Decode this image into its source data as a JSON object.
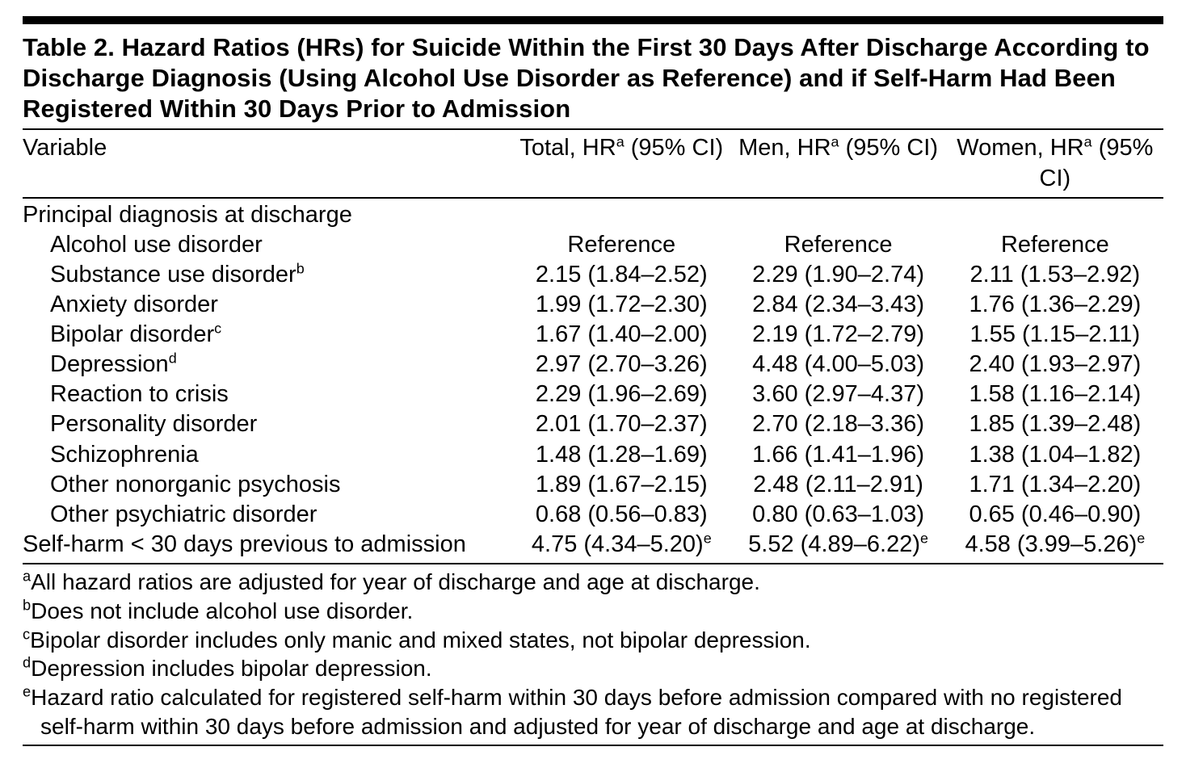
{
  "caption": "Table 2. Hazard Ratios (HRs) for Suicide Within the First 30 Days After Discharge According to Discharge Diagnosis (Using Alcohol Use Disorder as Reference) and if Self-Harm Had Been Registered Within 30 Days Prior to Admission",
  "columns": {
    "variable": "Variable",
    "total_pre": "Total, HR",
    "total_sup": "a",
    "total_post": " (95% CI)",
    "men_pre": "Men, HR",
    "men_sup": "a",
    "men_post": " (95% CI)",
    "women_pre": "Women, HR",
    "women_sup": "a",
    "women_post": " (95% CI)"
  },
  "section_header": "Principal diagnosis at discharge",
  "rows": [
    {
      "label": "Alcohol use disorder",
      "sup": "",
      "total": "Reference",
      "men": "Reference",
      "women": "Reference",
      "tsup": "",
      "msup": "",
      "wsup": ""
    },
    {
      "label": "Substance use disorder",
      "sup": "b",
      "total": "2.15 (1.84–2.52)",
      "men": "2.29 (1.90–2.74)",
      "women": "2.11 (1.53–2.92)",
      "tsup": "",
      "msup": "",
      "wsup": ""
    },
    {
      "label": "Anxiety disorder",
      "sup": "",
      "total": "1.99 (1.72–2.30)",
      "men": "2.84 (2.34–3.43)",
      "women": "1.76 (1.36–2.29)",
      "tsup": "",
      "msup": "",
      "wsup": ""
    },
    {
      "label": "Bipolar disorder",
      "sup": "c",
      "total": "1.67 (1.40–2.00)",
      "men": "2.19 (1.72–2.79)",
      "women": "1.55 (1.15–2.11)",
      "tsup": "",
      "msup": "",
      "wsup": ""
    },
    {
      "label": "Depression",
      "sup": "d",
      "total": "2.97 (2.70–3.26)",
      "men": "4.48 (4.00–5.03)",
      "women": "2.40 (1.93–2.97)",
      "tsup": "",
      "msup": "",
      "wsup": ""
    },
    {
      "label": "Reaction to crisis",
      "sup": "",
      "total": "2.29 (1.96–2.69)",
      "men": "3.60 (2.97–4.37)",
      "women": "1.58 (1.16–2.14)",
      "tsup": "",
      "msup": "",
      "wsup": ""
    },
    {
      "label": "Personality disorder",
      "sup": "",
      "total": "2.01 (1.70–2.37)",
      "men": "2.70 (2.18–3.36)",
      "women": "1.85 (1.39–2.48)",
      "tsup": "",
      "msup": "",
      "wsup": ""
    },
    {
      "label": "Schizophrenia",
      "sup": "",
      "total": "1.48 (1.28–1.69)",
      "men": "1.66 (1.41–1.96)",
      "women": "1.38 (1.04–1.82)",
      "tsup": "",
      "msup": "",
      "wsup": ""
    },
    {
      "label": "Other nonorganic psychosis",
      "sup": "",
      "total": "1.89 (1.67–2.15)",
      "men": "2.48 (2.11–2.91)",
      "women": "1.71 (1.34–2.20)",
      "tsup": "",
      "msup": "",
      "wsup": ""
    },
    {
      "label": "Other psychiatric disorder",
      "sup": "",
      "total": "0.68 (0.56–0.83)",
      "men": "0.80 (0.63–1.03)",
      "women": "0.65 (0.46–0.90)",
      "tsup": "",
      "msup": "",
      "wsup": ""
    }
  ],
  "self_harm_row": {
    "label": "Self-harm < 30 days previous to admission",
    "total": "4.75 (4.34–5.20)",
    "tsup": "e",
    "men": "5.52 (4.89–6.22)",
    "msup": "e",
    "women": "4.58 (3.99–5.26)",
    "wsup": "e"
  },
  "footnotes": [
    {
      "sup": "a",
      "text": "All hazard ratios are adjusted for year of discharge and age at discharge."
    },
    {
      "sup": "b",
      "text": "Does not include alcohol use disorder."
    },
    {
      "sup": "c",
      "text": "Bipolar disorder includes only manic and mixed states, not bipolar depression."
    },
    {
      "sup": "d",
      "text": "Depression includes bipolar depression."
    },
    {
      "sup": "e",
      "text": "Hazard ratio calculated for registered self-harm within 30 days before admission compared with no registered self-harm within 30 days before admission and adjusted for year of discharge and age at discharge."
    }
  ]
}
